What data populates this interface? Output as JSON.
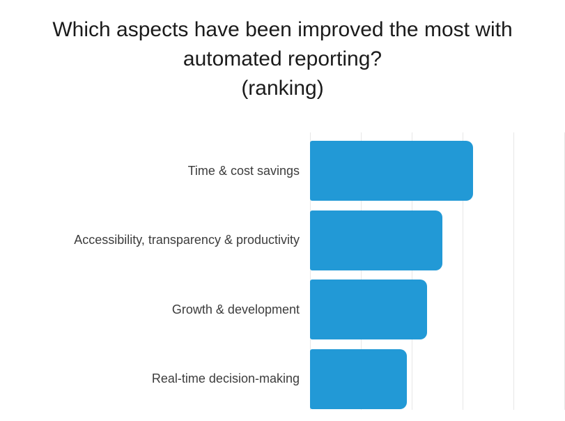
{
  "header": {
    "title_line1": "Which aspects have been improved the most with",
    "title_line2": "automated reporting?",
    "title_line3": "(ranking)"
  },
  "chart_data": {
    "type": "bar",
    "orientation": "horizontal",
    "title": "Which aspects have been improved the most with automated reporting?",
    "subtitle": "(ranking)",
    "categories": [
      "Time & cost savings",
      "Accessibility, transparency & productivity",
      "Growth & development",
      "Real-time decision-making"
    ],
    "values": [
      3.2,
      2.6,
      2.3,
      1.9
    ],
    "xlim": [
      0,
      5
    ],
    "gridlines": [
      0,
      1,
      2,
      3,
      4,
      5
    ],
    "grid": "vertical-only",
    "legend": "none",
    "axis_tick_labels_visible": false,
    "bar_color": "#2299d6",
    "title_color": "#1b1b1b",
    "label_color": "#3c3c3c",
    "gridline_color": "#e7e7e7",
    "background_color": "#ffffff"
  }
}
